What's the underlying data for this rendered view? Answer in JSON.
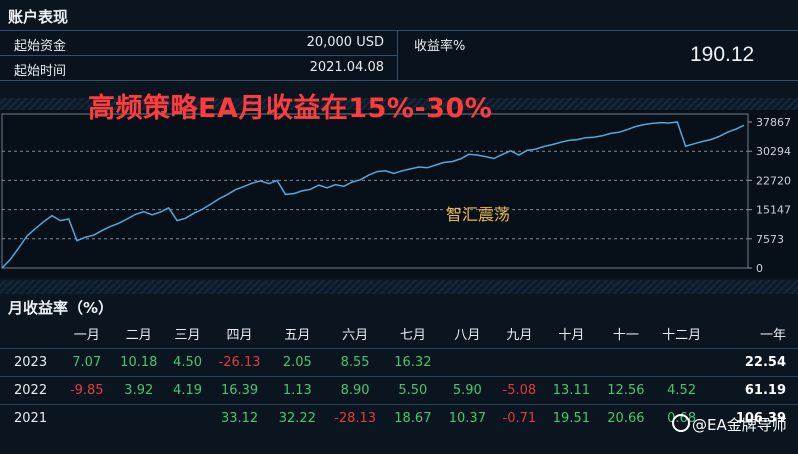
{
  "account": {
    "section_title": "账户表现",
    "start_capital_label": "起始资金",
    "start_capital_value": "20,000 USD",
    "start_time_label": "起始时间",
    "start_time_value": "2021.04.08",
    "return_label": "收益率%",
    "return_value": "190.12"
  },
  "headline": "高频策略EA月收益在15%-30%",
  "watermark": "智汇震荡",
  "footer_watermark": "@EA金牌导师",
  "colors": {
    "line": "#5aa6d8",
    "positive": "#43c96b",
    "negative": "#e23b3b",
    "headline": "#ff3b3b"
  },
  "chart_data": {
    "type": "line",
    "y_ticks": [
      "37867",
      "30294",
      "22720",
      "15147",
      "7573",
      "0"
    ],
    "ylim": [
      0,
      37867
    ],
    "grid": true,
    "series": [
      {
        "values": [
          0,
          2200,
          5200,
          8300,
          10200,
          12000,
          13600,
          12300,
          12700,
          7100,
          8000,
          8500,
          9700,
          10800,
          11600,
          12700,
          13900,
          14600,
          13800,
          14500,
          15600,
          12300,
          12900,
          14200,
          15200,
          16500,
          17900,
          19000,
          20300,
          21100,
          22000,
          22600,
          21900,
          22700,
          19100,
          19300,
          20000,
          20400,
          21500,
          20800,
          21600,
          21200,
          22300,
          22900,
          24100,
          25000,
          25200,
          24500,
          25200,
          25700,
          26200,
          26000,
          26700,
          27400,
          27600,
          28300,
          29500,
          29300,
          28900,
          28400,
          29400,
          30400,
          29300,
          30500,
          30800,
          31500,
          32000,
          32600,
          33100,
          33300,
          33800,
          33900,
          34300,
          34900,
          35200,
          35900,
          36700,
          37200,
          37500,
          37700,
          37600,
          37867,
          31600,
          32200,
          32800,
          33300,
          34100,
          35200,
          36000,
          37000
        ]
      }
    ]
  },
  "monthly": {
    "section_title": "月收益率（%）",
    "headers": [
      "",
      "一月",
      "二月",
      "三月",
      "四月",
      "五月",
      "六月",
      "七月",
      "八月",
      "九月",
      "十月",
      "十一",
      "十二月",
      "一年"
    ],
    "rows": [
      {
        "year": "2023",
        "months": [
          "7.07",
          "10.18",
          "4.50",
          "-26.13",
          "2.05",
          "8.55",
          "16.32",
          "",
          "",
          "",
          "",
          ""
        ],
        "total": "22.54"
      },
      {
        "year": "2022",
        "months": [
          "-9.85",
          "3.92",
          "4.19",
          "16.39",
          "1.13",
          "8.90",
          "5.50",
          "5.90",
          "-5.08",
          "13.11",
          "12.56",
          "4.52"
        ],
        "total": "61.19"
      },
      {
        "year": "2021",
        "months": [
          "",
          "",
          "",
          "33.12",
          "32.22",
          "-28.13",
          "18.67",
          "10.37",
          "-0.71",
          "19.51",
          "20.66",
          "0.68"
        ],
        "total": "106.39"
      }
    ]
  }
}
